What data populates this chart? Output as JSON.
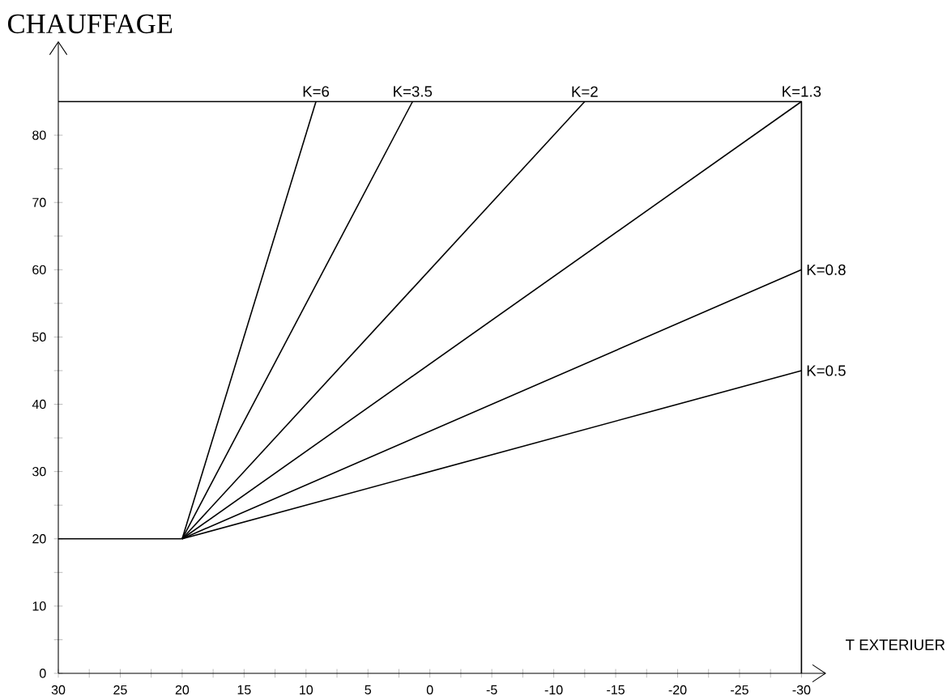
{
  "chart_data": {
    "type": "line",
    "title": "CHAUFFAGE",
    "xlabel": "T EXTERIUER",
    "xlim": [
      30,
      -32
    ],
    "ylim": [
      0,
      94
    ],
    "xticks": [
      30,
      {
        "value": 27.5,
        "label": null
      },
      25,
      {
        "value": 22.5,
        "label": null
      },
      20,
      {
        "value": 17.5,
        "label": null
      },
      15,
      {
        "value": 12.5,
        "label": null
      },
      10,
      {
        "value": 7.5,
        "label": null
      },
      5,
      {
        "value": 2.5,
        "label": null
      },
      0,
      {
        "value": -2.5,
        "label": null
      },
      -5,
      {
        "value": -7.5,
        "label": null
      },
      -10,
      {
        "value": -12.5,
        "label": null
      },
      -15,
      {
        "value": -17.5,
        "label": null
      },
      -20,
      {
        "value": -22.5,
        "label": null
      },
      -25,
      {
        "value": -27.5,
        "label": null
      },
      -30
    ],
    "yticks": [
      0,
      {
        "value": 5,
        "label": null
      },
      10,
      {
        "value": 15,
        "label": null
      },
      20,
      {
        "value": 25,
        "label": null
      },
      30,
      {
        "value": 35,
        "label": null
      },
      40,
      {
        "value": 45,
        "label": null
      },
      50,
      {
        "value": 55,
        "label": null
      },
      60,
      {
        "value": 65,
        "label": null
      },
      70,
      {
        "value": 75,
        "label": null
      },
      80
    ],
    "series": [
      {
        "x": [
          30,
          -30,
          -30
        ],
        "values": [
          85,
          85,
          0
        ],
        "color": "#000000"
      },
      {
        "name": "K=6",
        "x": [
          20,
          9.2
        ],
        "values": [
          20,
          85
        ],
        "color": "#000000"
      },
      {
        "name": "K=3.5",
        "x": [
          20,
          1.4
        ],
        "values": [
          20,
          85
        ],
        "color": "#000000"
      },
      {
        "name": "K=2",
        "x": [
          20,
          -12.5
        ],
        "values": [
          20,
          85
        ],
        "color": "#000000"
      },
      {
        "name": "K=1.3",
        "x": [
          20,
          -30
        ],
        "values": [
          20,
          85
        ],
        "color": "#000000"
      },
      {
        "name": "K=0.8",
        "x": [
          30,
          20,
          -30
        ],
        "values": [
          20,
          20,
          60
        ],
        "color": "#000000"
      },
      {
        "name": "K=0.5",
        "x": [
          20,
          -30
        ],
        "values": [
          20,
          45
        ],
        "color": "#000000"
      }
    ]
  }
}
